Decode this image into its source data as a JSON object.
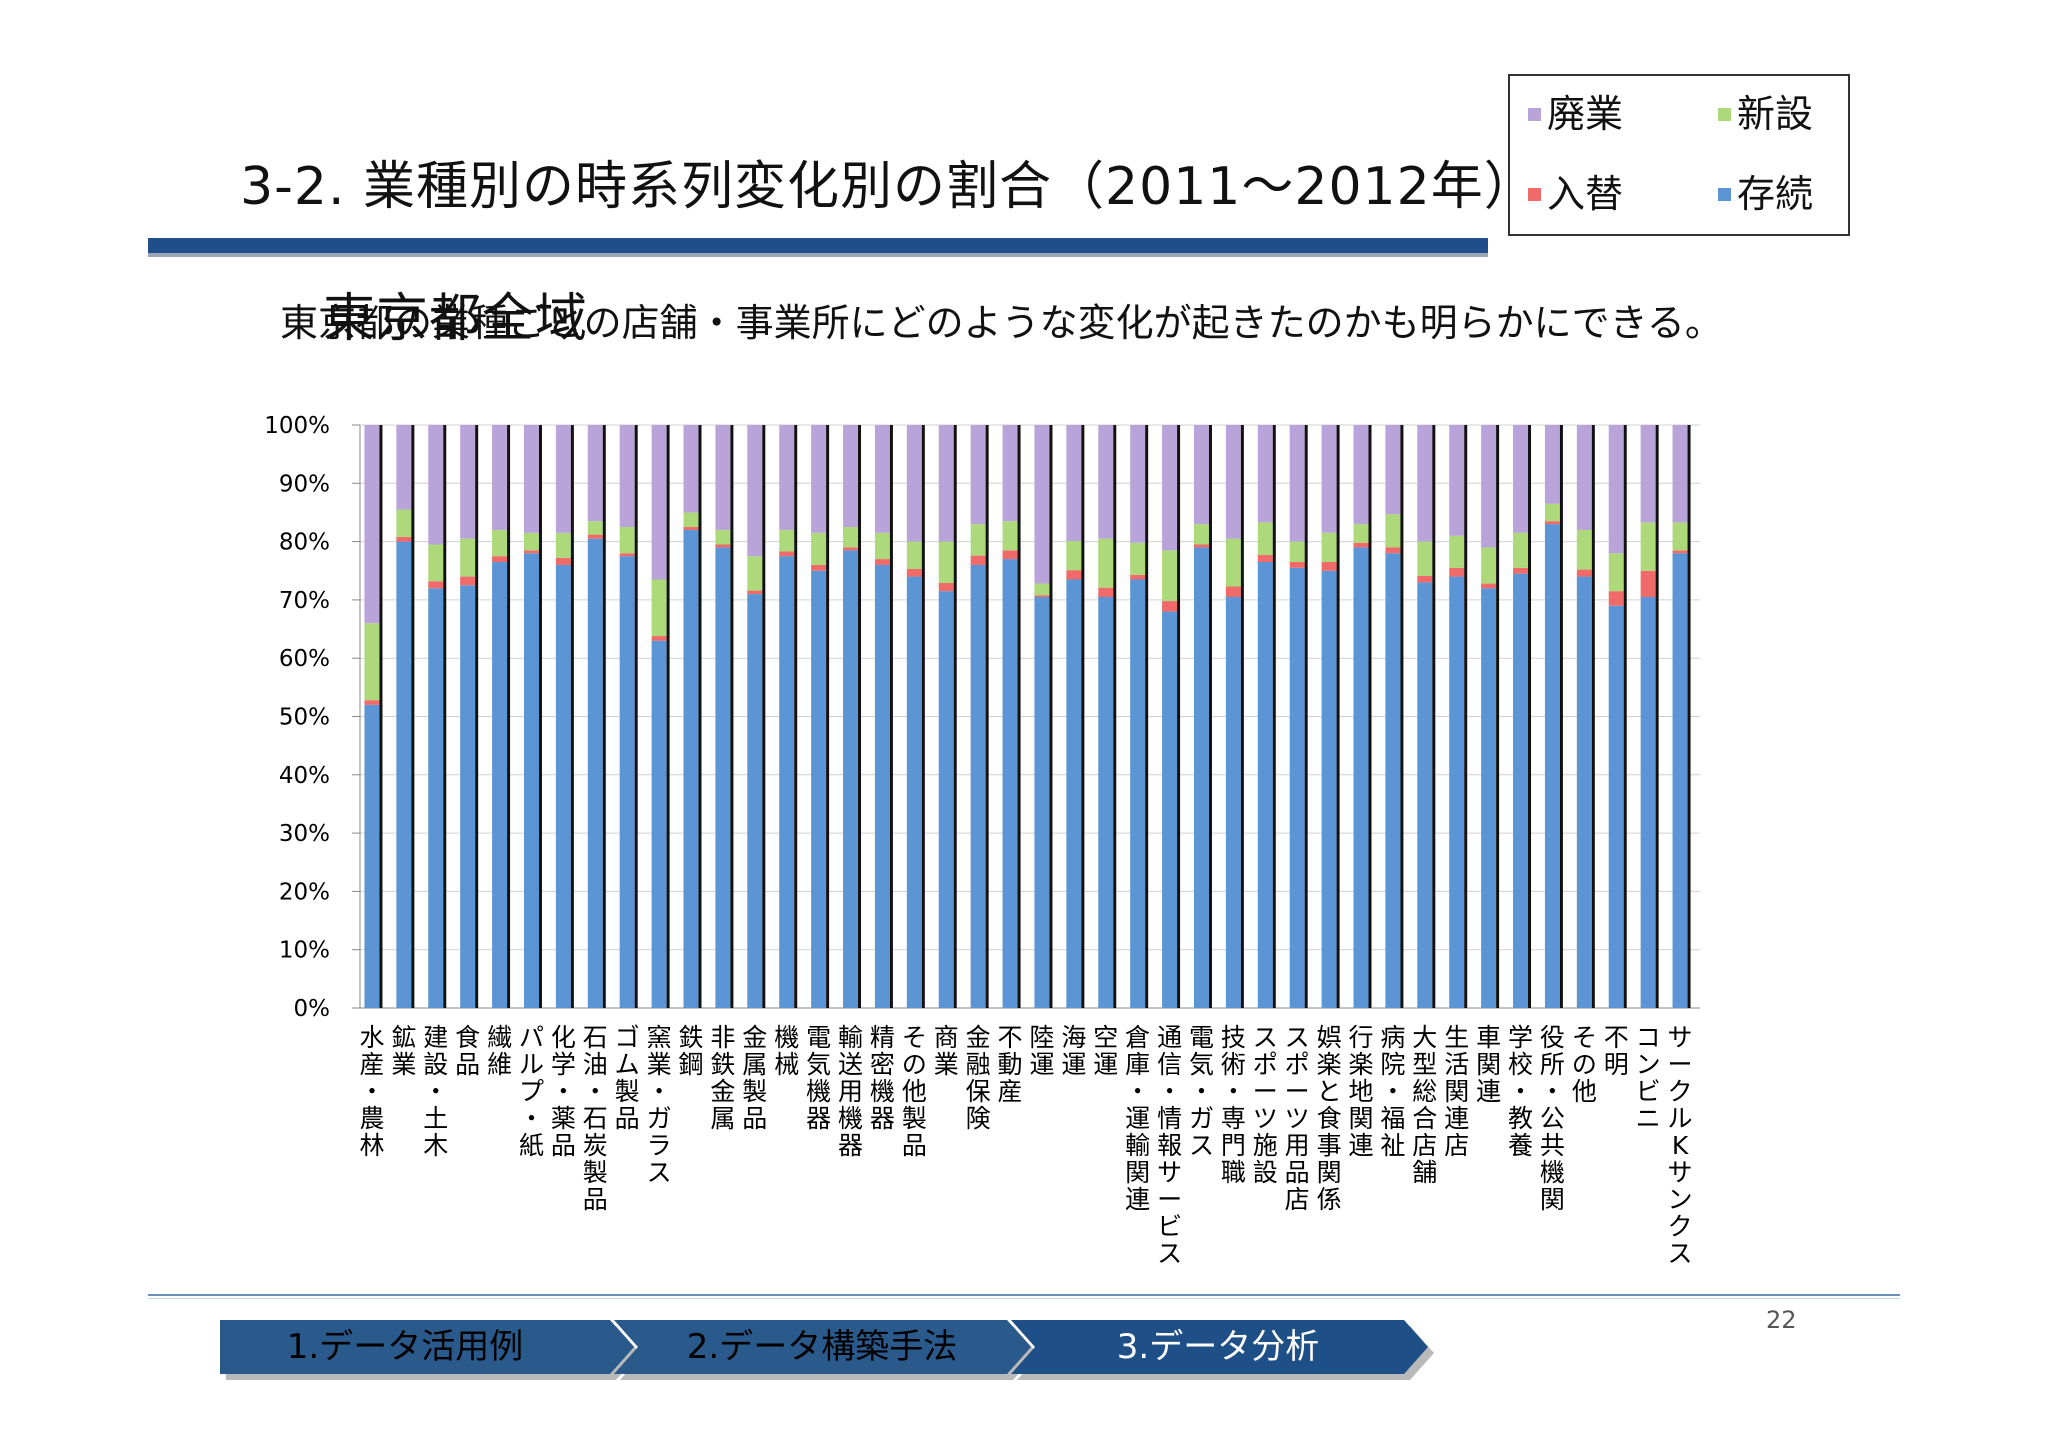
{
  "title": {
    "line1": "3-2. 業種別の時系列変化別の割合（2011〜2012年）",
    "line2": "東京都全域"
  },
  "legend": {
    "items": [
      {
        "label": "廃業",
        "color": "#b8a4d8"
      },
      {
        "label": "新設",
        "color": "#aed97a"
      },
      {
        "label": "入替",
        "color": "#f06a6a"
      },
      {
        "label": "存続",
        "color": "#5b95d6"
      }
    ]
  },
  "subtitle": "東京都の業種ごとの店舗・事業所にどのような変化が起きたのかも明らかにできる。",
  "chart_data": {
    "type": "bar",
    "stacked": true,
    "ylim": [
      0,
      100
    ],
    "yticks": [
      "0%",
      "10%",
      "20%",
      "30%",
      "40%",
      "50%",
      "60%",
      "70%",
      "80%",
      "90%",
      "100%"
    ],
    "grid": true,
    "categories": [
      "水産・農林",
      "鉱業",
      "建設・土木",
      "食品",
      "繊維",
      "パルプ・紙",
      "化学・薬品",
      "石油・石炭製品",
      "ゴム製品",
      "窯業・ガラス",
      "鉄鋼",
      "非鉄金属",
      "金属製品",
      "機械",
      "電気機器",
      "輸送用機器",
      "精密機器",
      "その他製品",
      "商業",
      "金融保険",
      "不動産",
      "陸運",
      "海運",
      "空運",
      "倉庫・運輸関連",
      "通信・情報サービス",
      "電気・ガス",
      "技術・専門職",
      "スポーツ施設",
      "スポーツ用品店",
      "娯楽と食事関係",
      "行楽地関連",
      "病院・福祉",
      "大型総合店舗",
      "生活関連店",
      "車関連",
      "学校・教養",
      "役所・公共機関",
      "その他",
      "不明",
      "コンビニ",
      "サークルKサンクス"
    ],
    "series": [
      {
        "name": "存続",
        "values": [
          52,
          80,
          72,
          72.5,
          76.5,
          78,
          76,
          80.5,
          77.5,
          63,
          82,
          79,
          71,
          77.5,
          75,
          78.5,
          76,
          74,
          71.5,
          76,
          77,
          70.5,
          73.5,
          70.5,
          73.5,
          68,
          79,
          70.5,
          76.5,
          75.5,
          75,
          79,
          78,
          73,
          74,
          72,
          74.5,
          83,
          74,
          69,
          70.5,
          78
        ]
      },
      {
        "name": "入替",
        "values": [
          0.8,
          0.8,
          1.2,
          1.5,
          1.0,
          0.5,
          1.2,
          0.7,
          0.5,
          0.8,
          0.5,
          0.5,
          0.6,
          0.8,
          1.0,
          0.5,
          1.0,
          1.3,
          1.4,
          1.6,
          1.5,
          0.3,
          1.6,
          1.6,
          0.8,
          1.8,
          0.5,
          1.8,
          1.2,
          1.0,
          1.5,
          0.8,
          1.0,
          1.1,
          1.5,
          0.8,
          1.0,
          0.5,
          1.2,
          2.5,
          4.5,
          0.5
        ]
      },
      {
        "name": "新設",
        "values": [
          13.2,
          4.7,
          6.3,
          6.5,
          4.5,
          3.0,
          4.3,
          2.3,
          4.5,
          9.7,
          2.5,
          2.5,
          5.9,
          3.7,
          5.5,
          3.5,
          4.5,
          4.7,
          7.1,
          5.4,
          5.0,
          2.0,
          5.0,
          8.4,
          5.5,
          8.7,
          3.5,
          8.2,
          5.6,
          3.5,
          5.0,
          3.2,
          5.7,
          5.9,
          5.5,
          6.2,
          6.0,
          3.0,
          6.8,
          6.5,
          8.3,
          4.8
        ]
      },
      {
        "name": "廃業",
        "values": [
          34,
          14.5,
          20.5,
          19.5,
          18,
          18.5,
          18.5,
          16.5,
          17.5,
          26.5,
          15,
          18,
          22.5,
          18,
          18.5,
          17.5,
          18.5,
          20,
          20,
          17,
          16.5,
          27.2,
          19.9,
          19.5,
          20.2,
          21.5,
          17,
          19.5,
          16.7,
          20,
          18.5,
          17,
          15.3,
          20,
          19,
          21,
          18.5,
          13.5,
          18,
          22,
          16.7,
          16.7
        ]
      }
    ]
  },
  "footer": {
    "nav": [
      "1.データ活用例",
      "2.データ構築手法",
      "3.データ分析"
    ],
    "page_number": "22"
  }
}
